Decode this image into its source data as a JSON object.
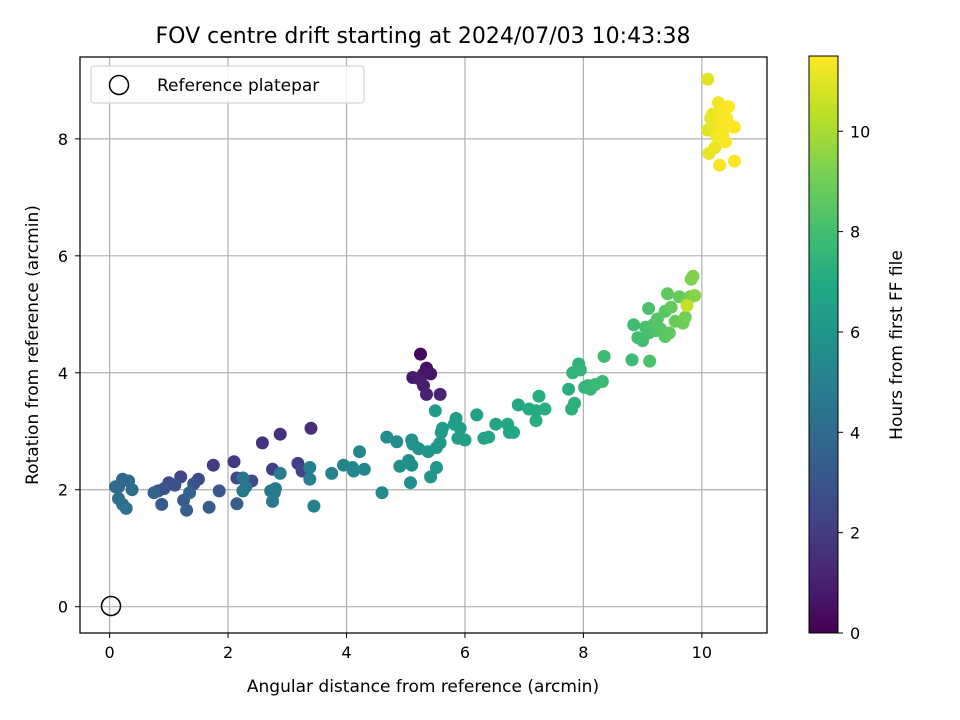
{
  "chart_data": {
    "type": "scatter",
    "title": "FOV centre drift starting at 2024/07/03 10:43:38",
    "xlabel": "Angular distance from reference (arcmin)",
    "ylabel": "Rotation from reference (arcmin)",
    "xlim": [
      -0.5,
      11.1
    ],
    "ylim": [
      -0.45,
      9.4
    ],
    "xticks": [
      0,
      2,
      4,
      6,
      8,
      10
    ],
    "yticks": [
      0,
      2,
      4,
      6,
      8
    ],
    "grid": true,
    "colorbar": {
      "label": "Hours from first FF file",
      "range": [
        0,
        11.5
      ],
      "ticks": [
        0,
        2,
        4,
        6,
        8,
        10
      ],
      "colormap": "viridis"
    },
    "legend": {
      "placement": "top-left",
      "entries": [
        "Reference platepar"
      ]
    },
    "reference_point": {
      "x": 0,
      "y": 0
    },
    "points": [
      {
        "x": 5.25,
        "y": 4.32,
        "h": 0.3
      },
      {
        "x": 5.35,
        "y": 4.08,
        "h": 0.5
      },
      {
        "x": 5.3,
        "y": 3.98,
        "h": 0.6
      },
      {
        "x": 5.42,
        "y": 3.98,
        "h": 0.7
      },
      {
        "x": 5.12,
        "y": 3.92,
        "h": 0.8
      },
      {
        "x": 5.22,
        "y": 3.9,
        "h": 0.9
      },
      {
        "x": 5.3,
        "y": 3.78,
        "h": 1.0
      },
      {
        "x": 5.35,
        "y": 3.63,
        "h": 1.1
      },
      {
        "x": 5.58,
        "y": 3.63,
        "h": 1.2
      },
      {
        "x": 3.4,
        "y": 3.05,
        "h": 1.5
      },
      {
        "x": 2.88,
        "y": 2.95,
        "h": 1.6
      },
      {
        "x": 2.58,
        "y": 2.8,
        "h": 1.7
      },
      {
        "x": 2.1,
        "y": 2.48,
        "h": 1.9
      },
      {
        "x": 1.75,
        "y": 2.42,
        "h": 2.0
      },
      {
        "x": 2.75,
        "y": 2.35,
        "h": 2.1
      },
      {
        "x": 3.18,
        "y": 2.45,
        "h": 2.2
      },
      {
        "x": 3.25,
        "y": 2.32,
        "h": 2.3
      },
      {
        "x": 1.2,
        "y": 2.22,
        "h": 2.4
      },
      {
        "x": 2.15,
        "y": 2.2,
        "h": 2.5
      },
      {
        "x": 2.4,
        "y": 2.15,
        "h": 2.6
      },
      {
        "x": 1.5,
        "y": 2.18,
        "h": 2.6
      },
      {
        "x": 1.0,
        "y": 2.12,
        "h": 2.7
      },
      {
        "x": 1.1,
        "y": 2.08,
        "h": 2.8
      },
      {
        "x": 0.92,
        "y": 2.02,
        "h": 2.9
      },
      {
        "x": 0.82,
        "y": 1.98,
        "h": 3.0
      },
      {
        "x": 1.42,
        "y": 2.1,
        "h": 3.0
      },
      {
        "x": 1.85,
        "y": 1.98,
        "h": 3.1
      },
      {
        "x": 1.25,
        "y": 1.82,
        "h": 3.2
      },
      {
        "x": 0.88,
        "y": 1.75,
        "h": 3.3
      },
      {
        "x": 1.68,
        "y": 1.7,
        "h": 3.4
      },
      {
        "x": 2.15,
        "y": 1.76,
        "h": 3.4
      },
      {
        "x": 1.3,
        "y": 1.65,
        "h": 3.5
      },
      {
        "x": 1.35,
        "y": 1.95,
        "h": 3.6
      },
      {
        "x": 0.75,
        "y": 1.95,
        "h": 3.6
      },
      {
        "x": 0.15,
        "y": 2.05,
        "h": 3.7
      },
      {
        "x": 0.22,
        "y": 2.18,
        "h": 3.8
      },
      {
        "x": 0.32,
        "y": 2.15,
        "h": 3.9
      },
      {
        "x": 0.1,
        "y": 2.05,
        "h": 4.0
      },
      {
        "x": 0.38,
        "y": 2.0,
        "h": 4.1
      },
      {
        "x": 0.15,
        "y": 1.85,
        "h": 4.2
      },
      {
        "x": 0.22,
        "y": 1.75,
        "h": 4.2
      },
      {
        "x": 0.28,
        "y": 1.68,
        "h": 4.3
      },
      {
        "x": 2.25,
        "y": 2.2,
        "h": 4.4
      },
      {
        "x": 2.3,
        "y": 2.05,
        "h": 4.5
      },
      {
        "x": 2.25,
        "y": 1.98,
        "h": 4.6
      },
      {
        "x": 2.72,
        "y": 1.98,
        "h": 4.6
      },
      {
        "x": 2.78,
        "y": 1.95,
        "h": 4.7
      },
      {
        "x": 2.8,
        "y": 2.02,
        "h": 4.7
      },
      {
        "x": 2.75,
        "y": 1.8,
        "h": 4.8
      },
      {
        "x": 2.88,
        "y": 2.28,
        "h": 4.8
      },
      {
        "x": 3.38,
        "y": 2.38,
        "h": 4.9
      },
      {
        "x": 3.38,
        "y": 2.18,
        "h": 5.0
      },
      {
        "x": 3.45,
        "y": 1.72,
        "h": 5.0
      },
      {
        "x": 3.75,
        "y": 2.28,
        "h": 5.1
      },
      {
        "x": 3.95,
        "y": 2.42,
        "h": 5.2
      },
      {
        "x": 4.1,
        "y": 2.38,
        "h": 5.2
      },
      {
        "x": 4.12,
        "y": 2.32,
        "h": 5.3
      },
      {
        "x": 4.3,
        "y": 2.35,
        "h": 5.3
      },
      {
        "x": 4.22,
        "y": 2.65,
        "h": 5.4
      },
      {
        "x": 4.6,
        "y": 1.95,
        "h": 5.4
      },
      {
        "x": 4.68,
        "y": 2.9,
        "h": 5.5
      },
      {
        "x": 4.85,
        "y": 2.82,
        "h": 5.5
      },
      {
        "x": 4.9,
        "y": 2.4,
        "h": 5.6
      },
      {
        "x": 5.05,
        "y": 2.5,
        "h": 5.6
      },
      {
        "x": 5.1,
        "y": 2.42,
        "h": 5.7
      },
      {
        "x": 5.08,
        "y": 2.12,
        "h": 5.7
      },
      {
        "x": 5.12,
        "y": 2.78,
        "h": 5.8
      },
      {
        "x": 5.1,
        "y": 2.85,
        "h": 5.8
      },
      {
        "x": 5.22,
        "y": 2.7,
        "h": 5.9
      },
      {
        "x": 5.38,
        "y": 2.65,
        "h": 5.9
      },
      {
        "x": 5.42,
        "y": 2.22,
        "h": 6.0
      },
      {
        "x": 5.52,
        "y": 2.38,
        "h": 6.0
      },
      {
        "x": 5.52,
        "y": 2.72,
        "h": 6.1
      },
      {
        "x": 5.58,
        "y": 2.8,
        "h": 6.1
      },
      {
        "x": 5.5,
        "y": 3.35,
        "h": 6.2
      },
      {
        "x": 5.6,
        "y": 2.98,
        "h": 6.2
      },
      {
        "x": 5.62,
        "y": 3.05,
        "h": 6.3
      },
      {
        "x": 5.82,
        "y": 3.12,
        "h": 6.3
      },
      {
        "x": 5.85,
        "y": 3.22,
        "h": 6.4
      },
      {
        "x": 5.88,
        "y": 2.88,
        "h": 6.4
      },
      {
        "x": 5.92,
        "y": 3.05,
        "h": 6.5
      },
      {
        "x": 6.0,
        "y": 2.85,
        "h": 6.5
      },
      {
        "x": 6.2,
        "y": 3.28,
        "h": 6.6
      },
      {
        "x": 6.32,
        "y": 2.88,
        "h": 6.6
      },
      {
        "x": 6.4,
        "y": 2.9,
        "h": 6.7
      },
      {
        "x": 6.52,
        "y": 3.12,
        "h": 6.7
      },
      {
        "x": 6.72,
        "y": 3.12,
        "h": 6.8
      },
      {
        "x": 6.75,
        "y": 2.98,
        "h": 6.8
      },
      {
        "x": 6.82,
        "y": 2.98,
        "h": 6.9
      },
      {
        "x": 6.9,
        "y": 3.45,
        "h": 6.9
      },
      {
        "x": 7.08,
        "y": 3.38,
        "h": 7.0
      },
      {
        "x": 7.2,
        "y": 3.35,
        "h": 7.0
      },
      {
        "x": 7.25,
        "y": 3.6,
        "h": 7.1
      },
      {
        "x": 7.2,
        "y": 3.18,
        "h": 7.1
      },
      {
        "x": 7.35,
        "y": 3.38,
        "h": 7.2
      },
      {
        "x": 7.75,
        "y": 3.72,
        "h": 7.2
      },
      {
        "x": 7.8,
        "y": 3.38,
        "h": 7.3
      },
      {
        "x": 7.85,
        "y": 3.48,
        "h": 7.3
      },
      {
        "x": 7.82,
        "y": 4.0,
        "h": 7.4
      },
      {
        "x": 7.92,
        "y": 4.15,
        "h": 7.4
      },
      {
        "x": 7.95,
        "y": 4.05,
        "h": 7.5
      },
      {
        "x": 8.02,
        "y": 3.75,
        "h": 7.5
      },
      {
        "x": 8.08,
        "y": 3.78,
        "h": 7.6
      },
      {
        "x": 8.12,
        "y": 3.72,
        "h": 7.6
      },
      {
        "x": 8.2,
        "y": 3.8,
        "h": 7.7
      },
      {
        "x": 8.32,
        "y": 3.85,
        "h": 7.7
      },
      {
        "x": 8.35,
        "y": 4.28,
        "h": 7.8
      },
      {
        "x": 8.82,
        "y": 4.22,
        "h": 7.8
      },
      {
        "x": 8.85,
        "y": 4.82,
        "h": 7.9
      },
      {
        "x": 8.92,
        "y": 4.6,
        "h": 8.0
      },
      {
        "x": 9.0,
        "y": 4.55,
        "h": 8.0
      },
      {
        "x": 9.05,
        "y": 4.78,
        "h": 8.1
      },
      {
        "x": 9.1,
        "y": 4.68,
        "h": 8.1
      },
      {
        "x": 9.1,
        "y": 5.1,
        "h": 8.2
      },
      {
        "x": 9.12,
        "y": 4.2,
        "h": 8.2
      },
      {
        "x": 9.18,
        "y": 4.82,
        "h": 8.3
      },
      {
        "x": 9.22,
        "y": 4.72,
        "h": 8.3
      },
      {
        "x": 9.25,
        "y": 4.92,
        "h": 8.4
      },
      {
        "x": 9.3,
        "y": 4.75,
        "h": 8.4
      },
      {
        "x": 9.38,
        "y": 4.62,
        "h": 8.5
      },
      {
        "x": 9.38,
        "y": 5.05,
        "h": 8.5
      },
      {
        "x": 9.42,
        "y": 5.35,
        "h": 8.6
      },
      {
        "x": 9.45,
        "y": 4.68,
        "h": 8.6
      },
      {
        "x": 9.48,
        "y": 5.12,
        "h": 8.7
      },
      {
        "x": 9.55,
        "y": 4.88,
        "h": 8.8
      },
      {
        "x": 9.62,
        "y": 5.3,
        "h": 8.8
      },
      {
        "x": 9.68,
        "y": 4.85,
        "h": 8.9
      },
      {
        "x": 9.72,
        "y": 4.95,
        "h": 9.0
      },
      {
        "x": 9.75,
        "y": 5.22,
        "h": 9.0
      },
      {
        "x": 9.8,
        "y": 5.3,
        "h": 9.1
      },
      {
        "x": 9.82,
        "y": 5.6,
        "h": 9.2
      },
      {
        "x": 9.85,
        "y": 5.65,
        "h": 9.3
      },
      {
        "x": 9.88,
        "y": 5.32,
        "h": 9.4
      },
      {
        "x": 9.75,
        "y": 5.15,
        "h": 10.5
      },
      {
        "x": 10.1,
        "y": 9.02,
        "h": 11.0
      },
      {
        "x": 10.1,
        "y": 8.15,
        "h": 11.0
      },
      {
        "x": 10.12,
        "y": 7.75,
        "h": 11.1
      },
      {
        "x": 10.15,
        "y": 8.35,
        "h": 11.1
      },
      {
        "x": 10.18,
        "y": 8.42,
        "h": 11.2
      },
      {
        "x": 10.2,
        "y": 8.22,
        "h": 11.2
      },
      {
        "x": 10.22,
        "y": 7.85,
        "h": 11.2
      },
      {
        "x": 10.25,
        "y": 8.05,
        "h": 11.3
      },
      {
        "x": 10.28,
        "y": 8.62,
        "h": 11.3
      },
      {
        "x": 10.3,
        "y": 8.48,
        "h": 11.3
      },
      {
        "x": 10.32,
        "y": 8.3,
        "h": 11.4
      },
      {
        "x": 10.3,
        "y": 7.55,
        "h": 11.4
      },
      {
        "x": 10.35,
        "y": 8.05,
        "h": 11.4
      },
      {
        "x": 10.38,
        "y": 8.18,
        "h": 11.4
      },
      {
        "x": 10.4,
        "y": 7.95,
        "h": 11.5
      },
      {
        "x": 10.42,
        "y": 8.35,
        "h": 11.5
      },
      {
        "x": 10.45,
        "y": 8.55,
        "h": 11.5
      },
      {
        "x": 10.5,
        "y": 8.22,
        "h": 11.5
      },
      {
        "x": 10.55,
        "y": 8.2,
        "h": 11.5
      },
      {
        "x": 10.55,
        "y": 7.62,
        "h": 11.5
      }
    ]
  }
}
